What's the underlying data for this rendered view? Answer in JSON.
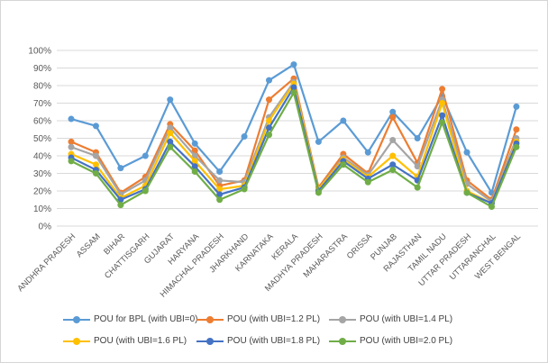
{
  "window": {
    "background": "#FFFFFF",
    "border_color": "#D6D6D6"
  },
  "chart_data": {
    "type": "line",
    "title": "",
    "xlabel": "",
    "ylabel": "",
    "ylim": [
      0,
      100
    ],
    "grid": true,
    "legend_position": "bottom",
    "gridline_color": "#D9D9D9",
    "axis_text_color": "#595959",
    "ytick_labels": [
      "0%",
      "10%",
      "20%",
      "30%",
      "40%",
      "50%",
      "60%",
      "70%",
      "80%",
      "90%",
      "100%"
    ],
    "categories": [
      "ANDHRA PRADESH",
      "ASSAM",
      "BIHAR",
      "CHATTISGARH",
      "GUJARAT",
      "HARYANA",
      "HIMACHAL PRADESH",
      "JHARKHAND",
      "KARNATAKA",
      "KERALA",
      "MADHYA PRADESH",
      "MAHARASTRA",
      "ORISSA",
      "PUNJAB",
      "RAJASTHAN",
      "TAMIL NADU",
      "UTTAR PRADESH",
      "UTTARANCHAL",
      "WEST BENGAL"
    ],
    "series": [
      {
        "name": "POU for BPL (with UBI=0)",
        "color": "#5B9BD5",
        "values": [
          61,
          57,
          33,
          40,
          72,
          47,
          31,
          51,
          83,
          92,
          48,
          60,
          42,
          65,
          50,
          74,
          42,
          19,
          68
        ]
      },
      {
        "name": "POU (with UBI=1.2 PL)",
        "color": "#ED7D31",
        "values": [
          48,
          42,
          19,
          28,
          58,
          43,
          23,
          26,
          72,
          84,
          22,
          41,
          30,
          62,
          36,
          78,
          26,
          15,
          55
        ]
      },
      {
        "name": "POU (with UBI=1.4 PL)",
        "color": "#A5A5A5",
        "values": [
          45,
          40,
          18,
          26,
          56,
          40,
          26,
          25,
          62,
          82,
          21,
          39,
          29,
          49,
          34,
          72,
          24,
          14,
          50
        ]
      },
      {
        "name": "POU (with UBI=1.6 PL)",
        "color": "#FFC000",
        "values": [
          41,
          35,
          16,
          23,
          53,
          37,
          21,
          23,
          60,
          81,
          21,
          38,
          28,
          40,
          28,
          70,
          20,
          13,
          48
        ]
      },
      {
        "name": "POU (with UBI=1.8 PL)",
        "color": "#4472C4",
        "values": [
          39,
          32,
          15,
          21,
          48,
          34,
          18,
          22,
          56,
          79,
          20,
          37,
          27,
          35,
          26,
          63,
          19,
          13,
          47
        ]
      },
      {
        "name": "POU (with UBI=2.0 PL)",
        "color": "#70AD47",
        "values": [
          37,
          30,
          12,
          20,
          45,
          31,
          15,
          21,
          52,
          76,
          19,
          35,
          25,
          32,
          22,
          59,
          19,
          11,
          45
        ]
      }
    ]
  }
}
